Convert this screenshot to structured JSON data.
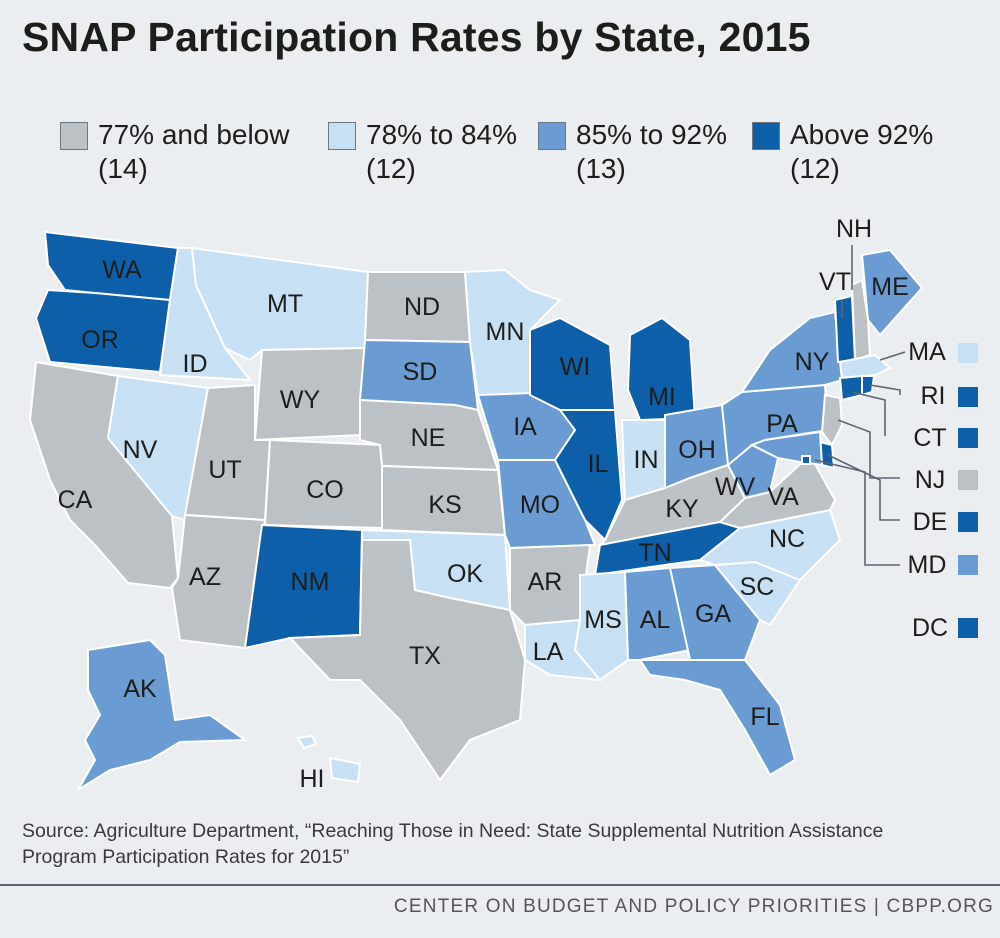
{
  "title": "SNAP Participation Rates by State, 2015",
  "legend": [
    {
      "label": "77% and below",
      "count": "(14)",
      "color": "#bcc1c6"
    },
    {
      "label": "78% to 84%",
      "count": "(12)",
      "color": "#c7e0f3"
    },
    {
      "label": "85% to 92%",
      "count": "(13)",
      "color": "#6a9cd3"
    },
    {
      "label": "Above 92%",
      "count": "(12)",
      "color": "#0d5fa9"
    }
  ],
  "states": {
    "WA": "Above 92%",
    "OR": "Above 92%",
    "CA": "77% and below",
    "ID": "78% to 84%",
    "NV": "78% to 84%",
    "MT": "78% to 84%",
    "WY": "77% and below",
    "UT": "77% and below",
    "AZ": "77% and below",
    "CO": "77% and below",
    "NM": "Above 92%",
    "ND": "77% and below",
    "SD": "85% to 92%",
    "NE": "77% and below",
    "KS": "77% and below",
    "OK": "78% to 84%",
    "TX": "77% and below",
    "MN": "78% to 84%",
    "IA": "85% to 92%",
    "MO": "85% to 92%",
    "AR": "77% and below",
    "LA": "78% to 84%",
    "WI": "Above 92%",
    "IL": "Above 92%",
    "MI": "Above 92%",
    "IN": "78% to 84%",
    "OH": "85% to 92%",
    "KY": "77% and below",
    "TN": "Above 92%",
    "MS": "78% to 84%",
    "AL": "85% to 92%",
    "GA": "85% to 92%",
    "FL": "85% to 92%",
    "SC": "78% to 84%",
    "NC": "78% to 84%",
    "VA": "77% and below",
    "WV": "85% to 92%",
    "PA": "85% to 92%",
    "NY": "85% to 92%",
    "ME": "85% to 92%",
    "NH": "77% and below",
    "VT": "Above 92%",
    "MA": "78% to 84%",
    "RI": "Above 92%",
    "CT": "Above 92%",
    "NJ": "77% and below",
    "DE": "Above 92%",
    "MD": "85% to 92%",
    "DC": "Above 92%",
    "AK": "85% to 92%",
    "HI": "78% to 84%"
  },
  "callouts": [
    "NH",
    "VT",
    "MA",
    "RI",
    "CT",
    "NJ",
    "DE",
    "MD",
    "DC"
  ],
  "source": "Source: Agriculture Department, “Reaching Those in Need: State Supplemental Nutrition Assistance Program Participation Rates for 2015”",
  "footer": "CENTER ON BUDGET AND POLICY PRIORITIES | CBPP.ORG"
}
